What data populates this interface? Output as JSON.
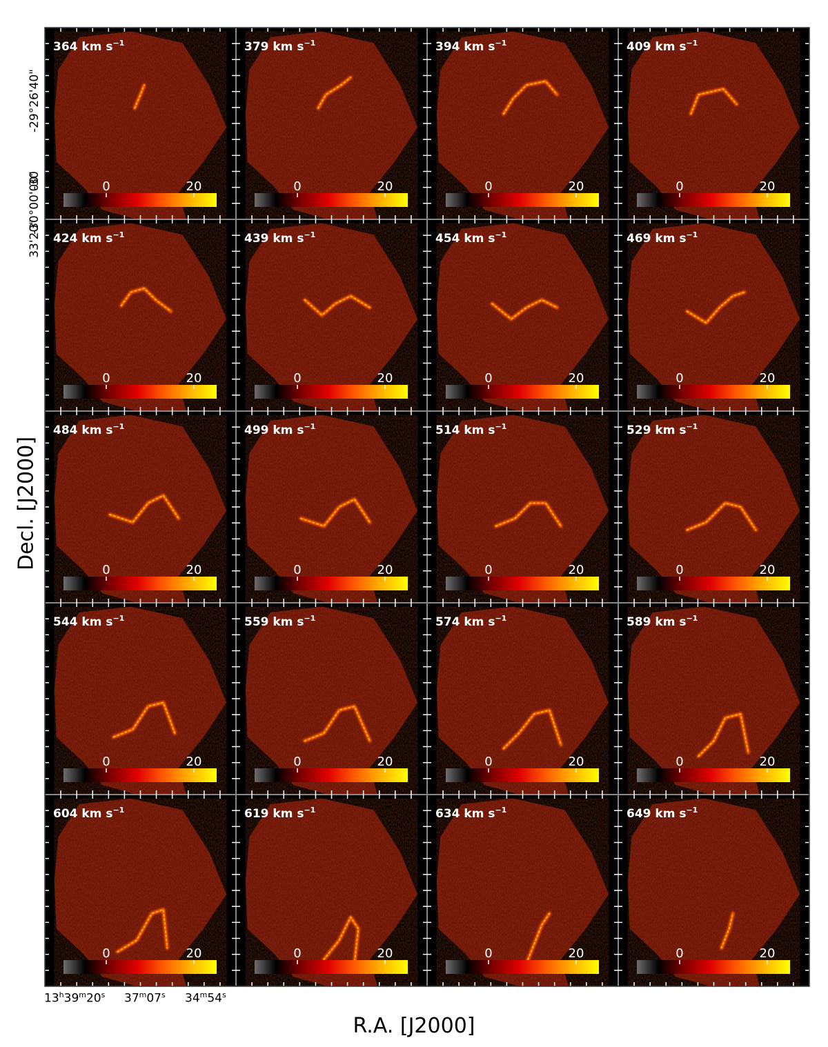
{
  "figure": {
    "xlabel": "R.A. [J2000]",
    "ylabel": "Decl. [J2000]",
    "ra_ticks": [
      {
        "h": "13",
        "hs": "h",
        "m": "39",
        "ms": "m",
        "s": "20",
        "ss": "s"
      },
      {
        "m": "37",
        "ms": "m",
        "s": "07",
        "ss": "s"
      },
      {
        "m": "34",
        "ms": "m",
        "s": "54",
        "ss": "s"
      }
    ],
    "dec_ticks": [
      "-29°26'40\"",
      "-30°00'00\"",
      "-30",
      "33'20\""
    ],
    "velocity_unit": "km s",
    "velocity_unit_exp": "−1",
    "colorbar_ticks": [
      "0",
      "20"
    ],
    "colormap": [
      "#6e6e6e",
      "#000000",
      "#7a0000",
      "#e00000",
      "#ff5a00",
      "#ffb000",
      "#ffff00"
    ],
    "map_background": "#000000",
    "emission_base_color": "#6a1205",
    "panels": [
      {
        "v": "364"
      },
      {
        "v": "379"
      },
      {
        "v": "394"
      },
      {
        "v": "409"
      },
      {
        "v": "424"
      },
      {
        "v": "439"
      },
      {
        "v": "454"
      },
      {
        "v": "469"
      },
      {
        "v": "484"
      },
      {
        "v": "499"
      },
      {
        "v": "514"
      },
      {
        "v": "529"
      },
      {
        "v": "544"
      },
      {
        "v": "559"
      },
      {
        "v": "574"
      },
      {
        "v": "589"
      },
      {
        "v": "604"
      },
      {
        "v": "619"
      },
      {
        "v": "634"
      },
      {
        "v": "649"
      }
    ]
  }
}
